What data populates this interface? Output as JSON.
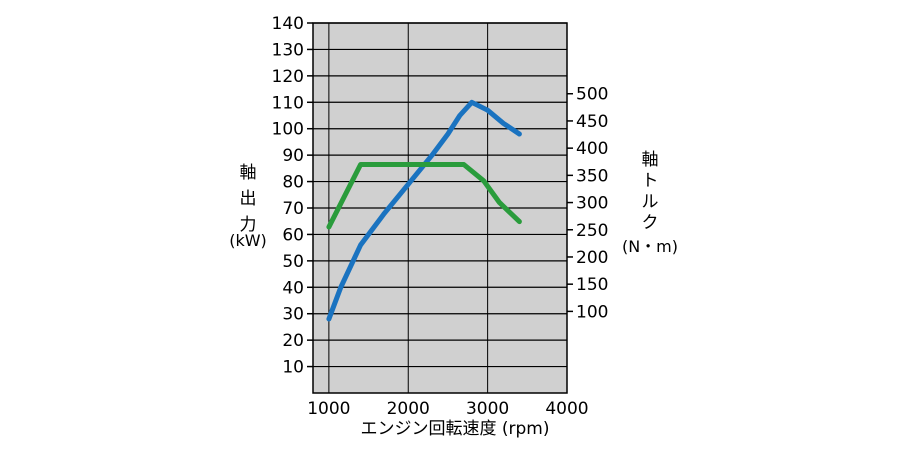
{
  "chart_data": {
    "type": "line",
    "xlabel": "エンジン回転速度 (rpm)",
    "x_ticks": [
      "1000",
      "2000",
      "3000",
      "4000"
    ],
    "xlim": [
      800,
      4000
    ],
    "y_left": {
      "label_chars": [
        "軸",
        "出",
        "力"
      ],
      "unit": "(kW)",
      "ylim": [
        0,
        140
      ],
      "ticks": [
        "10",
        "20",
        "30",
        "40",
        "50",
        "60",
        "70",
        "80",
        "90",
        "100",
        "110",
        "120",
        "130",
        "140"
      ]
    },
    "y_right": {
      "label_chars": [
        "軸",
        "ト",
        "ル",
        "ク"
      ],
      "unit": "(N・m)",
      "ylim": [
        -50,
        630
      ],
      "ticks": [
        "100",
        "150",
        "200",
        "250",
        "300",
        "350",
        "400",
        "450",
        "500"
      ]
    },
    "grid": true,
    "series": [
      {
        "axis": "left",
        "color": "#1a73c0",
        "x": [
          1000,
          1150,
          1400,
          1700,
          2000,
          2300,
          2500,
          2650,
          2800,
          3000,
          3200,
          3400
        ],
        "y": [
          28,
          40,
          56,
          68,
          79,
          90,
          98,
          105,
          110,
          107,
          102,
          98
        ]
      },
      {
        "axis": "right",
        "color": "#2a9c3c",
        "x": [
          1000,
          1400,
          1700,
          2000,
          2300,
          2700,
          2950,
          3150,
          3400
        ],
        "y": [
          255,
          370,
          370,
          370,
          370,
          370,
          340,
          300,
          265
        ]
      }
    ]
  }
}
